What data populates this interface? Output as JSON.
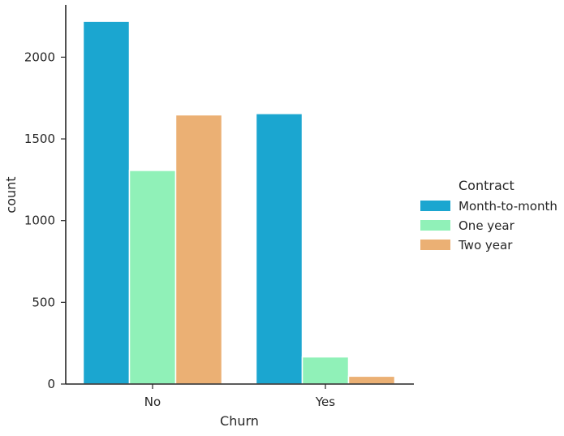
{
  "chart_data": {
    "type": "bar",
    "xlabel": "Churn",
    "ylabel": "count",
    "categories": [
      "No",
      "Yes"
    ],
    "ylim": [
      0,
      2320
    ],
    "yticks": [
      0,
      500,
      1000,
      1500,
      2000
    ],
    "grid": false,
    "legend": {
      "title": "Contract",
      "placement": "right"
    },
    "series": [
      {
        "name": "Month-to-month",
        "color": "#1ba6d0",
        "values": [
          2220,
          1655
        ]
      },
      {
        "name": "One year",
        "color": "#90f1b8",
        "values": [
          1307,
          166
        ]
      },
      {
        "name": "Two year",
        "color": "#ebb074",
        "values": [
          1647,
          48
        ]
      }
    ]
  }
}
